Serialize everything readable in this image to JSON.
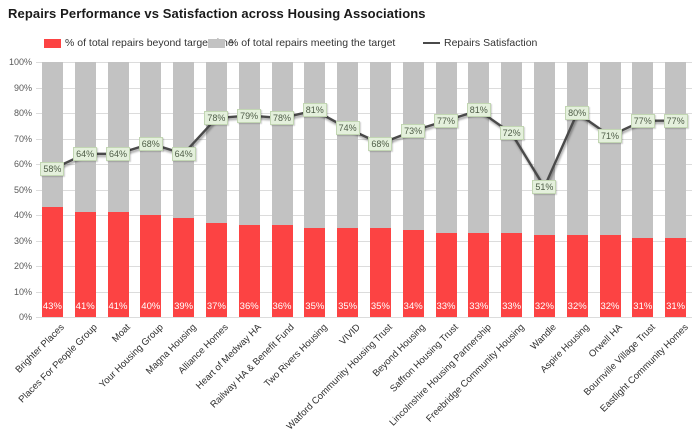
{
  "title": "Repairs Performance vs Satisfaction across Housing Associations",
  "colors": {
    "beyond_target_red": "#fc4343",
    "meeting_target_gray": "#c2c2c2",
    "satisfaction_line": "#4a4a4a",
    "line_label_bg": "#e4f0dc",
    "gridline": "#dcdcdc"
  },
  "chart_data": {
    "type": "combo: stacked-bar + line",
    "title": "Repairs Performance vs Satisfaction across Housing Associations",
    "categories": [
      "Brighter Places",
      "Places For People Group",
      "Moat",
      "Your Housing Group",
      "Magna Housing",
      "Alliance Homes",
      "Heart of Medway HA",
      "Railway HA & Benefit Fund",
      "Two Rivers Housing",
      "VIVID",
      "Watford Community Housing Trust",
      "Beyond Housing",
      "Saffron Housing Trust",
      "Lincolnshire Housing Partnership",
      "Freebridge Community Housing",
      "Wandle",
      "Aspire Housing",
      "Orwell HA",
      "Bournville Village Trust",
      "Eastlight Community Homes"
    ],
    "series": [
      {
        "name": "% of total repairs beyond target time",
        "type": "bar-stacked",
        "color": "#fc4343",
        "values": [
          43,
          41,
          41,
          40,
          39,
          37,
          36,
          36,
          35,
          35,
          35,
          34,
          33,
          33,
          33,
          32,
          32,
          32,
          31,
          31
        ],
        "labels_visible": true
      },
      {
        "name": "% of total repairs meeting the target",
        "type": "bar-stacked",
        "color": "#c2c2c2",
        "values": [
          57,
          59,
          59,
          60,
          61,
          63,
          64,
          64,
          65,
          65,
          65,
          66,
          67,
          67,
          67,
          68,
          68,
          68,
          69,
          69
        ],
        "labels_visible": false
      },
      {
        "name": "Repairs Satisfaction",
        "type": "line",
        "color": "#4a4a4a",
        "values": [
          58,
          64,
          64,
          68,
          64,
          78,
          79,
          78,
          81,
          74,
          68,
          73,
          77,
          81,
          72,
          51,
          80,
          71,
          77,
          77
        ],
        "labels_visible": true
      }
    ],
    "ylim": [
      0,
      100
    ],
    "y_ticks": [
      "0%",
      "10%",
      "20%",
      "30%",
      "40%",
      "50%",
      "60%",
      "70%",
      "80%",
      "90%",
      "100%"
    ],
    "grid": true,
    "legend_position": "top"
  }
}
